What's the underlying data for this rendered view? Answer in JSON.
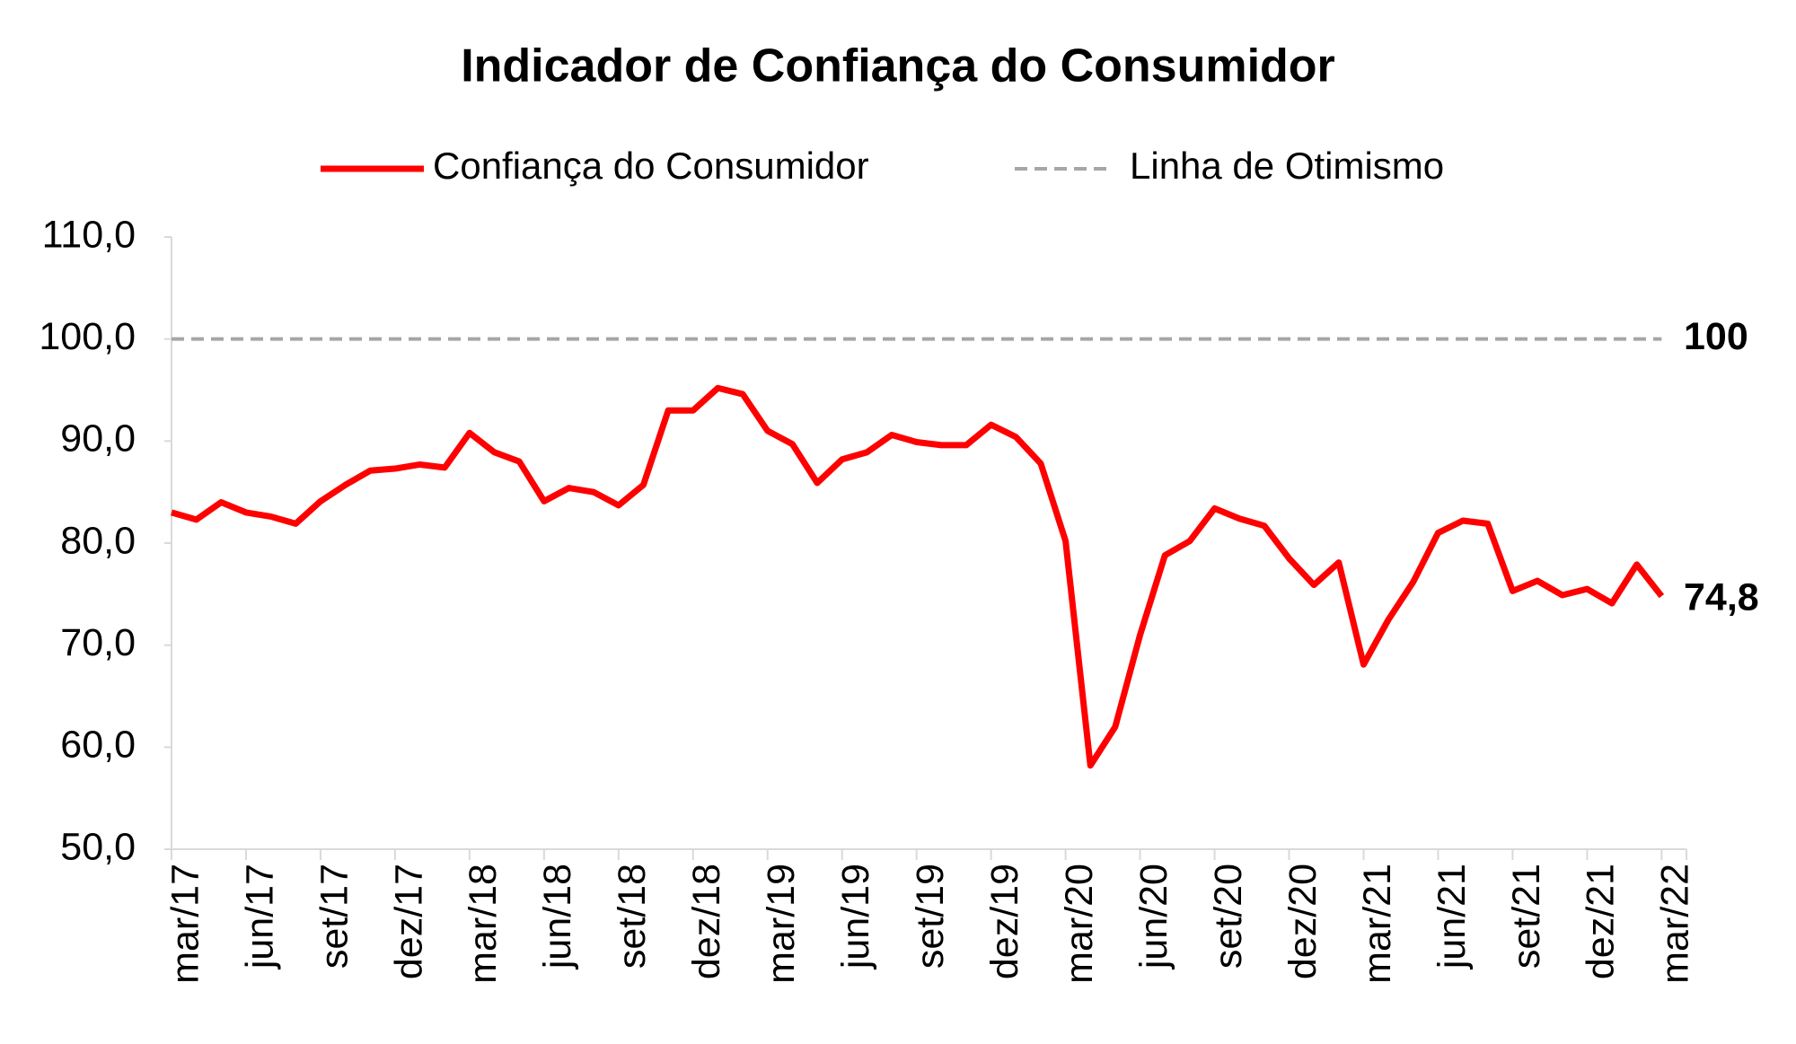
{
  "chart_data": {
    "type": "line",
    "title": "Indicador de Confiança do Consumidor",
    "categories": [
      "mar/17",
      null,
      null,
      "jun/17",
      null,
      null,
      "set/17",
      null,
      null,
      "dez/17",
      null,
      null,
      "mar/18",
      null,
      null,
      "jun/18",
      null,
      null,
      "set/18",
      null,
      null,
      "dez/18",
      null,
      null,
      "mar/19",
      null,
      null,
      "jun/19",
      null,
      null,
      "set/19",
      null,
      null,
      "dez/19",
      null,
      null,
      "mar/20",
      null,
      null,
      "jun/20",
      null,
      null,
      "set/20",
      null,
      null,
      "dez/20",
      null,
      null,
      "mar/21",
      null,
      null,
      "jun/21",
      null,
      null,
      "set/21",
      null,
      null,
      "dez/21",
      null,
      null,
      "mar/22"
    ],
    "series": [
      {
        "name": "Confiança do Consumidor",
        "color": "#ff0000",
        "values": [
          83.0,
          82.3,
          84.0,
          83.0,
          82.6,
          81.9,
          84.1,
          85.7,
          87.1,
          87.3,
          87.7,
          87.4,
          90.8,
          88.9,
          88.0,
          84.1,
          85.4,
          85.0,
          83.7,
          85.7,
          93.0,
          93.0,
          95.2,
          94.6,
          91.0,
          89.7,
          85.9,
          88.2,
          88.9,
          90.6,
          89.9,
          89.6,
          89.6,
          91.6,
          90.4,
          87.8,
          80.2,
          58.2,
          62.0,
          71.0,
          78.8,
          80.2,
          83.4,
          82.4,
          81.7,
          78.5,
          75.9,
          78.1,
          68.1,
          72.5,
          76.2,
          81.0,
          82.2,
          81.9,
          75.3,
          76.3,
          74.9,
          75.5,
          74.1,
          77.9,
          74.8
        ],
        "value_labels": [
          null,
          null,
          null,
          null,
          null,
          null,
          null,
          null,
          null,
          null,
          null,
          null,
          null,
          null,
          null,
          null,
          null,
          null,
          null,
          null,
          null,
          null,
          null,
          null,
          null,
          null,
          null,
          null,
          null,
          null,
          null,
          null,
          null,
          null,
          null,
          null,
          null,
          null,
          null,
          null,
          null,
          null,
          null,
          null,
          null,
          null,
          null,
          null,
          null,
          null,
          null,
          null,
          null,
          null,
          null,
          null,
          null,
          null,
          null,
          null,
          "74,8"
        ]
      }
    ],
    "reference_lines": [
      {
        "name": "Linha de Otimismo",
        "value": 100,
        "color": "#a6a6a6"
      }
    ],
    "ylim": [
      50,
      110
    ],
    "yticks": [
      {
        "value": 50,
        "label": "50,0"
      },
      {
        "value": 60,
        "label": "60,0"
      },
      {
        "value": 70,
        "label": "70,0"
      },
      {
        "value": 80,
        "label": "80,0"
      },
      {
        "value": 90,
        "label": "90,0"
      },
      {
        "value": 100,
        "label": "100,0"
      },
      {
        "value": 110,
        "label": "110,0"
      }
    ],
    "grid": false,
    "legend": "top"
  }
}
